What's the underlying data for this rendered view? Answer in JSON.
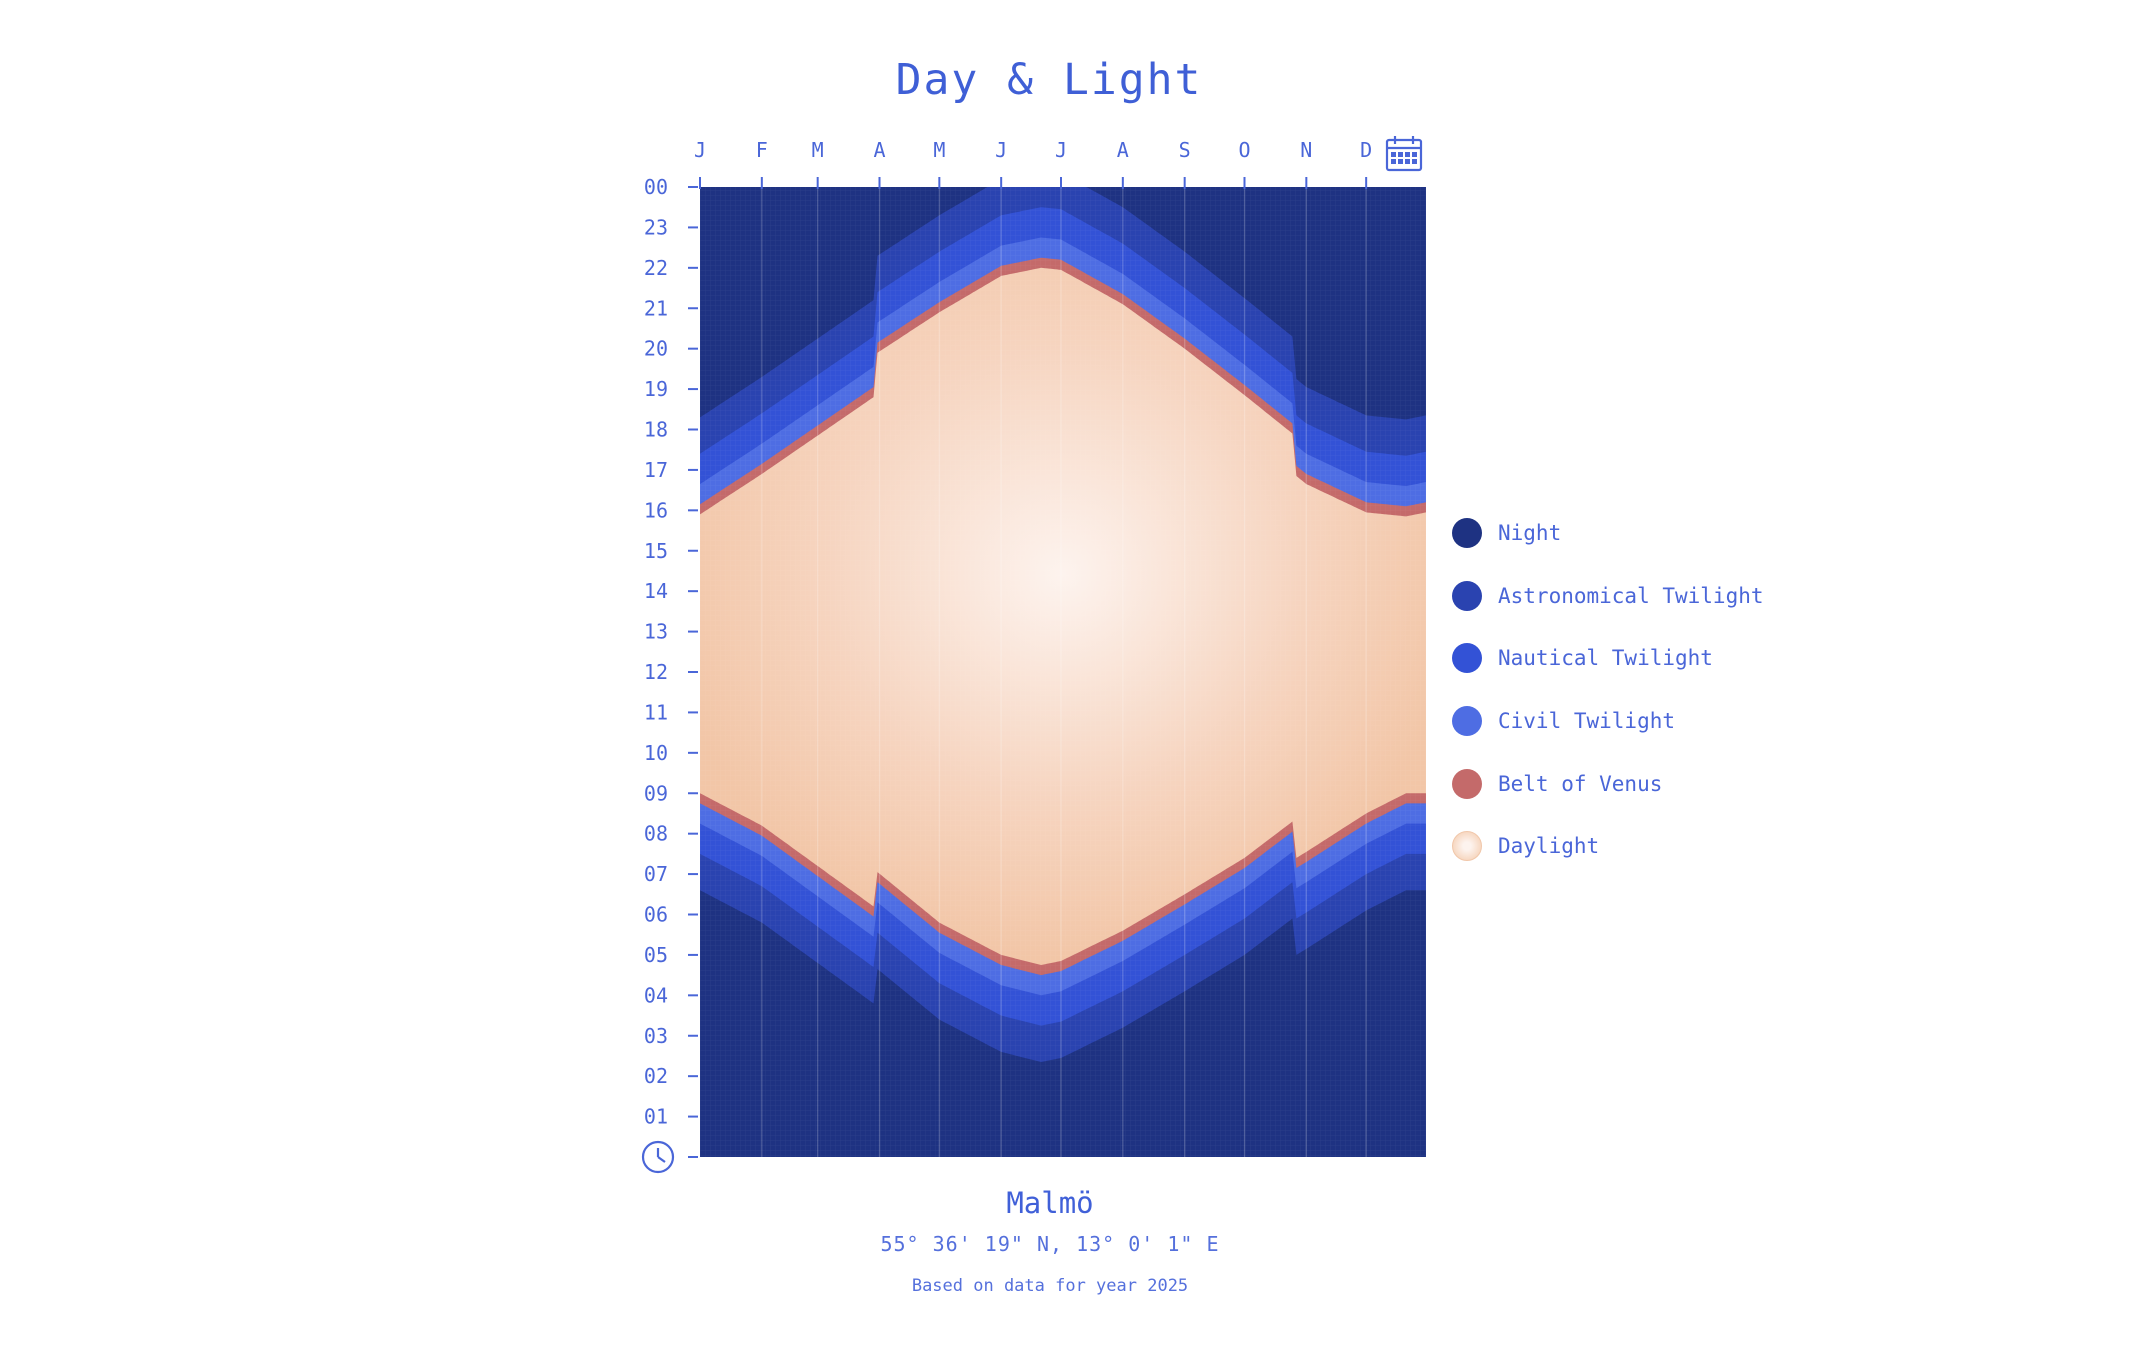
{
  "title": "Day & Light",
  "chart_data": {
    "type": "area",
    "title": "Day & Light",
    "x_tick_labels": [
      "J",
      "F",
      "M",
      "A",
      "M",
      "J",
      "J",
      "A",
      "S",
      "O",
      "N",
      "D"
    ],
    "y_tick_labels": [
      "00",
      "23",
      "22",
      "21",
      "20",
      "19",
      "18",
      "17",
      "16",
      "15",
      "14",
      "13",
      "12",
      "11",
      "10",
      "09",
      "08",
      "07",
      "06",
      "05",
      "04",
      "03",
      "02",
      "01"
    ],
    "ylim": [
      0,
      24
    ],
    "xlim": [
      1,
      365
    ],
    "x_unit": "day of year 2025",
    "y_unit": "hour of day",
    "dst_start_day": 89,
    "dst_end_day": 299,
    "sample_days": [
      1,
      32,
      60,
      88,
      90,
      121,
      152,
      172,
      182,
      213,
      244,
      274,
      298,
      300,
      305,
      335,
      355,
      365
    ],
    "sunrise": [
      9.0,
      8.2,
      7.2,
      6.2,
      7.05,
      5.8,
      5.0,
      4.75,
      4.85,
      5.6,
      6.5,
      7.4,
      8.3,
      7.4,
      7.55,
      8.5,
      9.0,
      9.0
    ],
    "sunset": [
      15.9,
      16.9,
      17.85,
      18.8,
      19.9,
      20.9,
      21.8,
      22.0,
      21.95,
      21.1,
      20.0,
      18.85,
      17.9,
      16.85,
      16.65,
      15.95,
      15.85,
      15.95
    ],
    "twilight_bands": [
      {
        "name": "Belt of Venus",
        "offset_hours": 0.25
      },
      {
        "name": "Civil Twilight",
        "offset_hours": 0.75
      },
      {
        "name": "Nautical Twilight",
        "offset_hours": 1.5
      },
      {
        "name": "Astronomical Twilight",
        "offset_hours": 2.4
      }
    ],
    "series": [
      {
        "name": "Night",
        "color": "#1e3282"
      },
      {
        "name": "Astronomical Twilight",
        "color": "#2a43b0"
      },
      {
        "name": "Nautical Twilight",
        "color": "#3352d6"
      },
      {
        "name": "Civil Twilight",
        "color": "#4e6de3"
      },
      {
        "name": "Belt of Venus",
        "color": "#c46a6a"
      },
      {
        "name": "Daylight",
        "color": "#f3c8a8"
      }
    ],
    "legend_position": "right",
    "grid": true
  },
  "legend": [
    {
      "label": "Night",
      "color": "#1e3282"
    },
    {
      "label": "Astronomical Twilight",
      "color": "#2a43b0"
    },
    {
      "label": "Nautical Twilight",
      "color": "#3352d6"
    },
    {
      "label": "Civil Twilight",
      "color": "#4e6de3"
    },
    {
      "label": "Belt of Venus",
      "color": "#c46a6a"
    },
    {
      "label": "Daylight",
      "color": "#f3c8a8"
    }
  ],
  "location": {
    "city": "Malmö",
    "coordinates": "55° 36' 19\" N, 13° 0' 1\" E",
    "note": "Based on data for year 2025"
  },
  "icons": {
    "top_right": "calendar-icon",
    "bottom_left": "clock-icon"
  }
}
